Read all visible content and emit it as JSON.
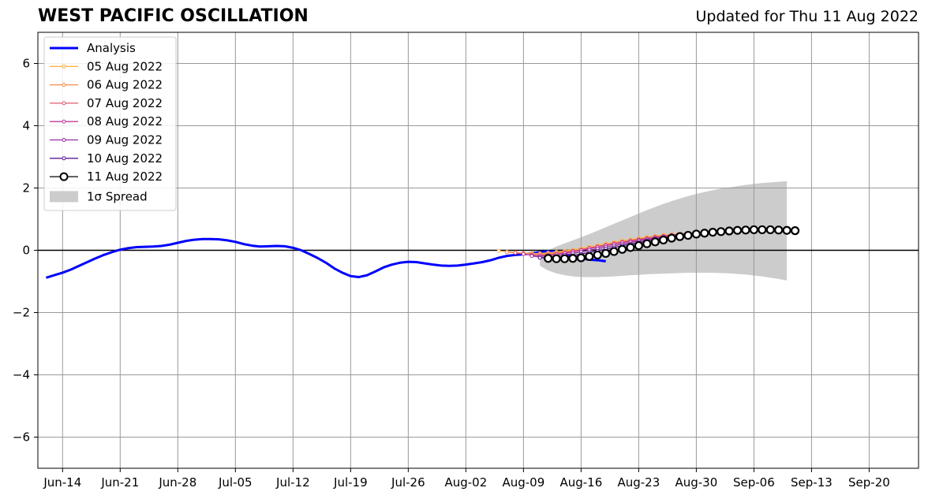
{
  "header": {
    "title": "WEST PACIFIC OSCILLATION",
    "updated": "Updated for Thu 11 Aug 2022"
  },
  "colors": {
    "analysis": "#0000ff",
    "spread": "#cccccc",
    "grid": "#999999",
    "forecasts": [
      "#ffb347",
      "#f58b4c",
      "#e05a6e",
      "#c03a9a",
      "#952ba3",
      "#5a1a96",
      "#000000"
    ]
  },
  "chart_data": {
    "type": "line",
    "title": "WEST PACIFIC OSCILLATION",
    "xlabel": "",
    "ylabel": "",
    "ylim": [
      -7,
      7
    ],
    "xlim": [
      "2022-06-11",
      "2022-09-26"
    ],
    "yticks": [
      6,
      4,
      2,
      0,
      -2,
      -4,
      -6
    ],
    "ytick_labels": [
      "6",
      "4",
      "2",
      "0",
      "−2",
      "−4",
      "−6"
    ],
    "xticks": [
      "2022-06-14",
      "2022-06-21",
      "2022-06-28",
      "2022-07-05",
      "2022-07-12",
      "2022-07-19",
      "2022-07-26",
      "2022-08-02",
      "2022-08-09",
      "2022-08-16",
      "2022-08-23",
      "2022-08-30",
      "2022-09-06",
      "2022-09-13",
      "2022-09-20"
    ],
    "xtick_labels": [
      "Jun-14",
      "Jun-21",
      "Jun-28",
      "Jul-05",
      "Jul-12",
      "Jul-19",
      "Jul-26",
      "Aug-02",
      "Aug-09",
      "Aug-16",
      "Aug-23",
      "Aug-30",
      "Sep-06",
      "Sep-13",
      "Sep-20"
    ],
    "grid": true,
    "legend_position": "top-left",
    "analysis": {
      "name": "Analysis",
      "start": "2022-06-12",
      "values": [
        -0.88,
        -0.8,
        -0.72,
        -0.62,
        -0.5,
        -0.38,
        -0.26,
        -0.15,
        -0.06,
        0.02,
        0.07,
        0.1,
        0.11,
        0.12,
        0.14,
        0.18,
        0.24,
        0.3,
        0.34,
        0.36,
        0.36,
        0.35,
        0.32,
        0.27,
        0.2,
        0.15,
        0.12,
        0.13,
        0.14,
        0.13,
        0.08,
        0.0,
        -0.12,
        -0.25,
        -0.4,
        -0.58,
        -0.72,
        -0.83,
        -0.86,
        -0.8,
        -0.68,
        -0.55,
        -0.46,
        -0.4,
        -0.37,
        -0.38,
        -0.42,
        -0.46,
        -0.49,
        -0.5,
        -0.49,
        -0.46,
        -0.42,
        -0.38,
        -0.32,
        -0.24,
        -0.18,
        -0.15,
        -0.13,
        -0.1,
        -0.06,
        -0.03,
        -0.05,
        -0.12,
        -0.2,
        -0.26,
        -0.3,
        -0.32,
        -0.35
      ]
    },
    "spread": {
      "name": "1σ Spread",
      "start": "2022-08-11",
      "upper": [
        -0.15,
        0.0,
        0.12,
        0.22,
        0.32,
        0.42,
        0.52,
        0.63,
        0.74,
        0.85,
        0.96,
        1.07,
        1.18,
        1.29,
        1.39,
        1.49,
        1.58,
        1.66,
        1.74,
        1.81,
        1.87,
        1.93,
        1.98,
        2.02,
        2.06,
        2.1,
        2.13,
        2.16,
        2.18,
        2.2,
        2.22
      ],
      "lower": [
        -0.5,
        -0.65,
        -0.74,
        -0.8,
        -0.84,
        -0.86,
        -0.86,
        -0.86,
        -0.85,
        -0.84,
        -0.82,
        -0.8,
        -0.79,
        -0.77,
        -0.76,
        -0.75,
        -0.74,
        -0.73,
        -0.72,
        -0.72,
        -0.72,
        -0.72,
        -0.73,
        -0.74,
        -0.76,
        -0.78,
        -0.81,
        -0.84,
        -0.88,
        -0.92,
        -0.97
      ]
    },
    "series": [
      {
        "name": "05 Aug 2022",
        "start": "2022-08-06",
        "values": [
          -0.02,
          -0.05,
          -0.07,
          -0.09,
          -0.1,
          -0.1,
          -0.08,
          -0.05,
          -0.02,
          0.02,
          0.06,
          0.11,
          0.16,
          0.21,
          0.26,
          0.31,
          0.35,
          0.39,
          0.43,
          0.46,
          0.49,
          0.51,
          0.53,
          0.55,
          0.57,
          0.59,
          0.6,
          0.61
        ]
      },
      {
        "name": "06 Aug 2022",
        "start": "2022-08-07",
        "values": [
          -0.06,
          -0.08,
          -0.1,
          -0.12,
          -0.12,
          -0.11,
          -0.08,
          -0.05,
          -0.01,
          0.03,
          0.08,
          0.13,
          0.18,
          0.23,
          0.28,
          0.32,
          0.36,
          0.4,
          0.44,
          0.47,
          0.5,
          0.52,
          0.54,
          0.56,
          0.58,
          0.59,
          0.6,
          0.61
        ]
      },
      {
        "name": "07 Aug 2022",
        "start": "2022-08-08",
        "values": [
          -0.08,
          -0.12,
          -0.15,
          -0.16,
          -0.14,
          -0.11,
          -0.07,
          -0.03,
          0.02,
          0.07,
          0.12,
          0.17,
          0.22,
          0.27,
          0.31,
          0.35,
          0.39,
          0.43,
          0.46,
          0.49,
          0.52,
          0.54,
          0.56,
          0.58,
          0.6,
          0.61,
          0.62,
          0.63
        ]
      },
      {
        "name": "08 Aug 2022",
        "start": "2022-08-09",
        "values": [
          -0.12,
          -0.16,
          -0.18,
          -0.17,
          -0.14,
          -0.1,
          -0.05,
          0.0,
          0.05,
          0.1,
          0.15,
          0.2,
          0.25,
          0.29,
          0.33,
          0.37,
          0.41,
          0.45,
          0.48,
          0.51,
          0.54,
          0.56,
          0.58,
          0.6,
          0.62,
          0.63,
          0.64,
          0.64
        ]
      },
      {
        "name": "09 Aug 2022",
        "start": "2022-08-10",
        "values": [
          -0.18,
          -0.22,
          -0.22,
          -0.19,
          -0.15,
          -0.1,
          -0.05,
          0.0,
          0.05,
          0.1,
          0.15,
          0.2,
          0.25,
          0.3,
          0.34,
          0.38,
          0.42,
          0.46,
          0.5,
          0.53,
          0.56,
          0.58,
          0.6,
          0.62,
          0.64,
          0.65,
          0.66,
          0.66
        ]
      },
      {
        "name": "10 Aug 2022",
        "start": "2022-08-11",
        "values": [
          -0.24,
          -0.25,
          -0.24,
          -0.21,
          -0.17,
          -0.12,
          -0.07,
          -0.02,
          0.04,
          0.09,
          0.15,
          0.2,
          0.25,
          0.3,
          0.35,
          0.39,
          0.43,
          0.47,
          0.51,
          0.54,
          0.57,
          0.59,
          0.61,
          0.63,
          0.65,
          0.66,
          0.67,
          0.67
        ]
      },
      {
        "name": "11 Aug 2022",
        "start": "2022-08-12",
        "values": [
          -0.26,
          -0.27,
          -0.27,
          -0.26,
          -0.24,
          -0.2,
          -0.15,
          -0.1,
          -0.04,
          0.03,
          0.09,
          0.15,
          0.21,
          0.27,
          0.33,
          0.39,
          0.44,
          0.48,
          0.52,
          0.55,
          0.58,
          0.6,
          0.62,
          0.64,
          0.65,
          0.66,
          0.66,
          0.66,
          0.65,
          0.64,
          0.63
        ]
      }
    ]
  }
}
